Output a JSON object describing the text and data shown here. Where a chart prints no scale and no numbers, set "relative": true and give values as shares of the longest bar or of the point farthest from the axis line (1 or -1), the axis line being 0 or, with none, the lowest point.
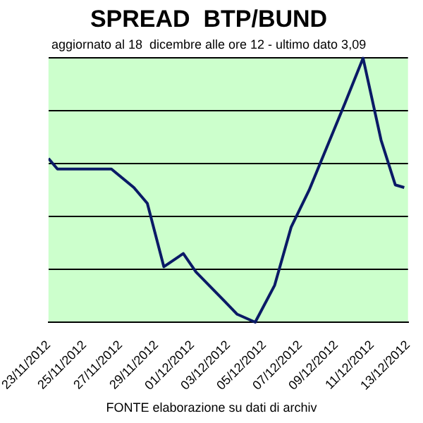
{
  "chart_data": {
    "type": "line",
    "title": "SPREAD  BTP/BUND",
    "subtitle": "aggiornato al 18  dicembre alle ore 12 - ultimo dato 3,09",
    "annotations": [
      "FONTE elaborazione su dati di archiv"
    ],
    "relative": true,
    "x": [
      "2012-11-23T00:00",
      "2012-11-23T12:00",
      "2012-11-26T12:00",
      "2012-11-27T18:00",
      "2012-11-28T12:00",
      "2012-11-29T10:00",
      "2012-11-30T12:00",
      "2012-12-01T05:00",
      "2012-12-02T19:00",
      "2012-12-03T12:00",
      "2012-12-04T12:00",
      "2012-12-05T14:00",
      "2012-12-06T12:00",
      "2012-12-07T12:00",
      "2012-12-09T12:00",
      "2012-12-10T12:00",
      "2012-12-11T12:00",
      "2012-12-12T07:00",
      "2012-12-12T19:00"
    ],
    "series": [
      {
        "color": "#0a1a66",
        "values": [
          0.62,
          0.58,
          0.58,
          0.51,
          0.45,
          0.21,
          0.26,
          0.19,
          0.08,
          0.03,
          0,
          0.14,
          0.36,
          0.5,
          0.83,
          1,
          0.69,
          0.52,
          0.51
        ]
      }
    ],
    "xlim": [
      "2012-11-23",
      "2012-12-13"
    ],
    "xticks": [
      {
        "value": "2012-11-23",
        "label": "23/11/2012"
      },
      {
        "value": "2012-11-25",
        "label": "25/11/2012"
      },
      {
        "value": "2012-11-27",
        "label": "27/11/2012"
      },
      {
        "value": "2012-11-29",
        "label": "29/11/2012"
      },
      {
        "value": "2012-12-01",
        "label": "01/12/2012"
      },
      {
        "value": "2012-12-03",
        "label": "03/12/2012"
      },
      {
        "value": "2012-12-05",
        "label": "05/12/2012"
      },
      {
        "value": "2012-12-07",
        "label": "07/12/2012"
      },
      {
        "value": "2012-12-09",
        "label": "09/12/2012"
      },
      {
        "value": "2012-12-11",
        "label": "11/12/2012"
      },
      {
        "value": "2012-12-13",
        "label": "13/12/2012"
      }
    ],
    "grid": "y",
    "legend": false,
    "marker": "none",
    "line_style": "solid"
  }
}
